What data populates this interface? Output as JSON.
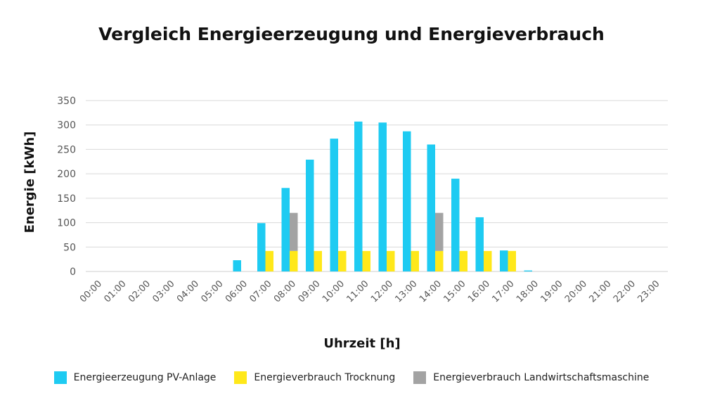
{
  "chart_data": {
    "type": "bar",
    "title": "Vergleich Energieerzeugung und Energieverbrauch",
    "xlabel": "Uhrzeit [h]",
    "ylabel": "Energie [kWh]",
    "ylim": [
      0,
      350
    ],
    "yticks": [
      0,
      50,
      100,
      150,
      200,
      250,
      300,
      350
    ],
    "grid": true,
    "legend_position": "bottom",
    "stacked_series": [
      "Energieverbrauch Trocknung",
      "Energieverbrauch Landwirtschaftsmaschine"
    ],
    "categories": [
      "00:00",
      "01:00",
      "02:00",
      "03:00",
      "04:00",
      "05:00",
      "06:00",
      "07:00",
      "08:00",
      "09:00",
      "10:00",
      "11:00",
      "12:00",
      "13:00",
      "14:00",
      "15:00",
      "16:00",
      "17:00",
      "18:00",
      "19:00",
      "20:00",
      "21:00",
      "22:00",
      "23:00"
    ],
    "series": [
      {
        "name": "Energieerzeugung PV-Anlage",
        "color": "#1ECBF2",
        "values": [
          0,
          0,
          0,
          0,
          0,
          0,
          23,
          99,
          171,
          229,
          272,
          307,
          305,
          287,
          260,
          190,
          111,
          43,
          2,
          0,
          0,
          0,
          0,
          0
        ]
      },
      {
        "name": "Energieverbrauch Trocknung",
        "color": "#FFE81A",
        "values": [
          0,
          0,
          0,
          0,
          0,
          0,
          0,
          42,
          42,
          42,
          42,
          42,
          42,
          42,
          42,
          42,
          42,
          42,
          0,
          0,
          0,
          0,
          0,
          0
        ]
      },
      {
        "name": "Energieverbrauch Landwirtschaftsmaschine",
        "color": "#A3A3A3",
        "values": [
          0,
          0,
          0,
          0,
          0,
          0,
          0,
          0,
          78,
          0,
          0,
          0,
          0,
          0,
          78,
          0,
          0,
          0,
          0,
          0,
          0,
          0,
          0,
          0
        ]
      }
    ]
  }
}
